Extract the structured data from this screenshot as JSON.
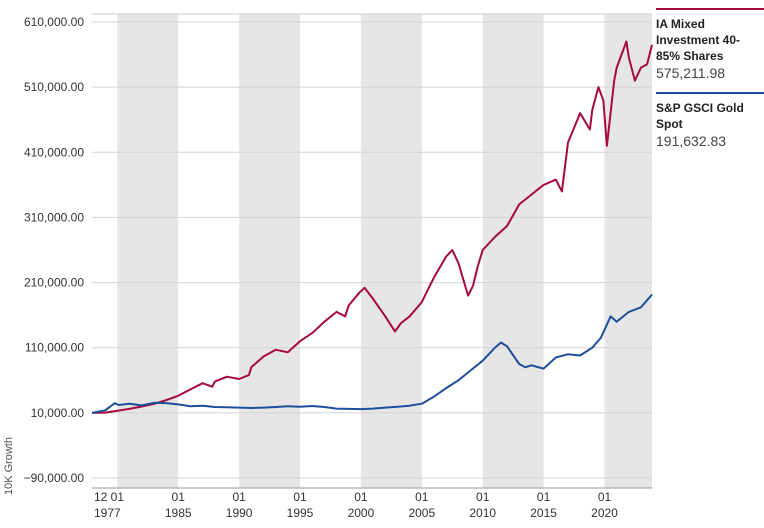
{
  "chart_data": {
    "type": "line",
    "ylabel": "10K Growth",
    "ylim": [
      -90000,
      610000
    ],
    "y_ticks": [
      "610,000.00",
      "510,000.00",
      "410,000.00",
      "310,000.00",
      "210,000.00",
      "110,000.00",
      "10,000.00",
      "−90,000.00"
    ],
    "y_tick_values": [
      610000,
      510000,
      410000,
      310000,
      210000,
      110000,
      10000,
      -90000
    ],
    "x_ticks": [
      {
        "top": "12",
        "bottom": "1977",
        "x": 1977.92
      },
      {
        "top": "01",
        "bottom": "",
        "x": 1980.0
      },
      {
        "top": "01",
        "bottom": "1985",
        "x": 1985.0
      },
      {
        "top": "01",
        "bottom": "1990",
        "x": 1990.0
      },
      {
        "top": "01",
        "bottom": "1995",
        "x": 1995.0
      },
      {
        "top": "01",
        "bottom": "2000",
        "x": 2000.0
      },
      {
        "top": "01",
        "bottom": "2005",
        "x": 2005.0
      },
      {
        "top": "01",
        "bottom": "2010",
        "x": 2010.0
      },
      {
        "top": "01",
        "bottom": "2015",
        "x": 2015.0
      },
      {
        "top": "01",
        "bottom": "2020",
        "x": 2020.0
      }
    ],
    "xlim": [
      1977.92,
      2023.9
    ],
    "shaded_bands": [
      [
        1980,
        1985
      ],
      [
        1990,
        1995
      ],
      [
        2000,
        2005
      ],
      [
        2010,
        2015
      ],
      [
        2020,
        2023.9
      ]
    ],
    "series": [
      {
        "name": "IA Mixed Investment 40-85% Shares",
        "color": "#a6093d",
        "last_value": "575,211.98",
        "x": [
          1977.92,
          1979,
          1980,
          1981,
          1982,
          1983,
          1984,
          1985,
          1986,
          1987,
          1987.8,
          1988,
          1989,
          1990,
          1990.8,
          1991,
          1992,
          1993,
          1994,
          1995,
          1996,
          1997,
          1998,
          1998.7,
          1999,
          1999.9,
          2000.3,
          2001,
          2002,
          2002.8,
          2003.3,
          2004,
          2005,
          2006,
          2007,
          2007.5,
          2008,
          2008.8,
          2009.2,
          2009.6,
          2010,
          2011,
          2012,
          2013,
          2014,
          2015,
          2016,
          2016.5,
          2017,
          2018,
          2018.8,
          2019,
          2019.5,
          2019.9,
          2020.2,
          2020.8,
          2021,
          2021.8,
          2022,
          2022.5,
          2023,
          2023.5,
          2023.9
        ],
        "values": [
          10000,
          10400,
          13200,
          16000,
          19800,
          23800,
          29400,
          36200,
          46000,
          55500,
          50200,
          58000,
          65500,
          62000,
          68000,
          80000,
          96500,
          107000,
          103000,
          120000,
          132500,
          150000,
          165000,
          158000,
          175000,
          195000,
          202000,
          185000,
          158000,
          135000,
          148000,
          158000,
          180000,
          218000,
          250000,
          260000,
          240000,
          190000,
          205000,
          235000,
          260000,
          280000,
          297000,
          330000,
          345000,
          360000,
          368000,
          350000,
          425000,
          470000,
          445000,
          475000,
          510000,
          490000,
          420000,
          520000,
          540000,
          580000,
          555000,
          520000,
          540000,
          545000,
          575212
        ]
      },
      {
        "name": "S&P GSCI Gold Spot",
        "color": "#1d4f9c",
        "last_value": "191,632.83",
        "x": [
          1977.92,
          1979,
          1979.8,
          1980.1,
          1981,
          1982,
          1983,
          1984,
          1985,
          1986,
          1987,
          1988,
          1989,
          1990,
          1991,
          1992,
          1993,
          1994,
          1995,
          1996,
          1997,
          1998,
          1999,
          2000,
          2001,
          2002,
          2003,
          2004,
          2005,
          2006,
          2007,
          2008,
          2009,
          2010,
          2011,
          2011.5,
          2012,
          2013,
          2013.5,
          2014,
          2015,
          2016,
          2017,
          2018,
          2019,
          2019.7,
          2020.5,
          2021,
          2022,
          2023,
          2023.9
        ],
        "values": [
          10000,
          14000,
          25000,
          22000,
          24000,
          21500,
          25500,
          25000,
          23000,
          20000,
          21000,
          19000,
          18500,
          18000,
          17500,
          18000,
          19000,
          20000,
          19500,
          20500,
          19000,
          16500,
          16000,
          15800,
          16500,
          18000,
          19500,
          21000,
          24000,
          35000,
          48000,
          60000,
          75000,
          90000,
          110000,
          118000,
          112000,
          85000,
          80000,
          83000,
          78000,
          95000,
          100000,
          98000,
          110000,
          125000,
          158000,
          150000,
          165000,
          172000,
          191633
        ]
      }
    ]
  }
}
